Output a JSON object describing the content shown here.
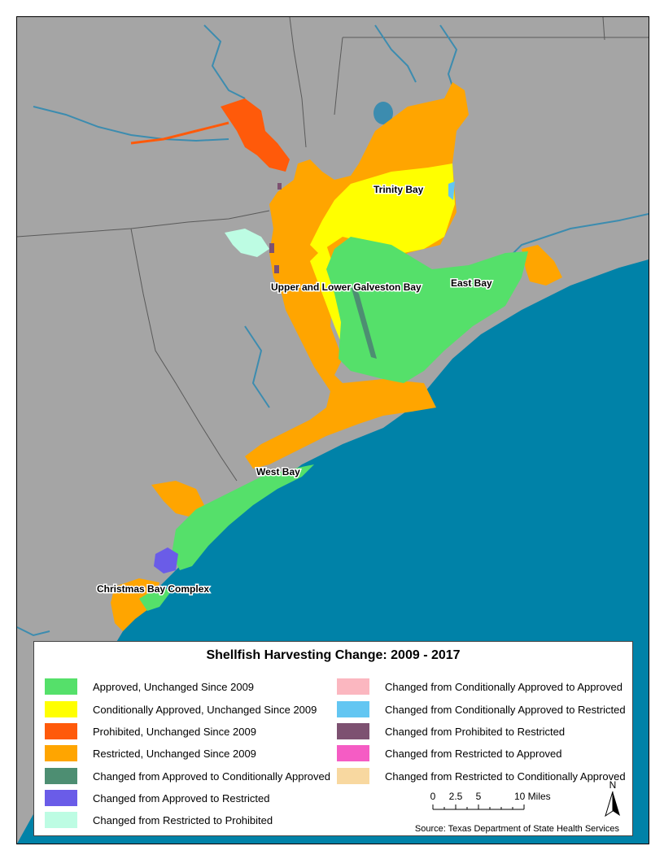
{
  "map": {
    "labels": {
      "trinity_bay": "Trinity Bay",
      "galveston_bay": "Upper and Lower Galveston Bay",
      "east_bay": "East Bay",
      "west_bay": "West Bay",
      "christmas_bay": "Christmas Bay Complex"
    },
    "colors": {
      "land": "#a5a5a5",
      "gulf": "#0082a8",
      "river": "#3c8caf"
    }
  },
  "legend": {
    "title": "Shellfish Harvesting Change: 2009 - 2017",
    "items": [
      {
        "label": "Approved, Unchanged Since 2009",
        "color": "#55e06a"
      },
      {
        "label": "Conditionally Approved, Unchanged Since 2009",
        "color": "#ffff00"
      },
      {
        "label": " Prohibited, Unchanged Since 2009",
        "color": "#ff5a0a"
      },
      {
        "label": "Restricted, Unchanged Since 2009",
        "color": "#ffa500"
      },
      {
        "label": "Changed from Approved to Conditionally Approved",
        "color": "#4d8e72"
      },
      {
        "label": "Changed from Approved to Restricted",
        "color": "#6a5ce8"
      },
      {
        "label": "Changed from Restricted to Prohibited",
        "color": "#bdfce3"
      },
      {
        "label": "Changed from Conditionally Approved to Approved",
        "color": "#fbb7c0"
      },
      {
        "label": "Changed from Conditionally Approved to Restricted",
        "color": "#63c6f2"
      },
      {
        "label": "Changed from Prohibited to Restricted",
        "color": "#7d5171"
      },
      {
        "label": "Changed from Restricted to Approved",
        "color": "#f55cc4"
      },
      {
        "label": "Changed from Restricted to Conditionally Approved",
        "color": "#f8d8a0"
      }
    ],
    "scale": {
      "ticks": [
        "0",
        "2.5",
        "5",
        "10 Miles"
      ]
    },
    "north_label": "N",
    "source": "Source: Texas Department of State Health Services"
  }
}
